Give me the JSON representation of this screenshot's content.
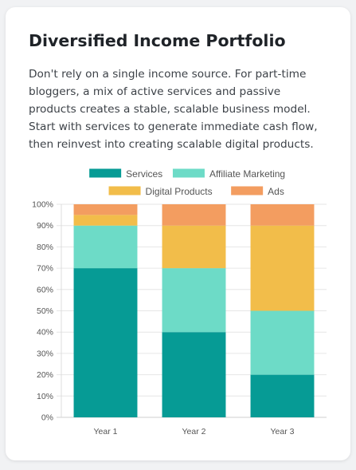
{
  "card": {
    "title": "Diversified Income Portfolio",
    "description": "Don't rely on a single income source. For part-time bloggers, a mix of active services and passive products creates a stable, scalable business model. Start with services to generate immediate cash flow, then reinvest into creating scalable digital products."
  },
  "chart_data": {
    "type": "bar",
    "stacked": true,
    "categories": [
      "Year 1",
      "Year 2",
      "Year 3"
    ],
    "series": [
      {
        "name": "Services",
        "color": "#069b95",
        "values": [
          70,
          40,
          20
        ]
      },
      {
        "name": "Affiliate Marketing",
        "color": "#6ddbc7",
        "values": [
          20,
          30,
          30
        ]
      },
      {
        "name": "Digital Products",
        "color": "#f2bd4a",
        "values": [
          5,
          20,
          40
        ]
      },
      {
        "name": "Ads",
        "color": "#f39d60",
        "values": [
          5,
          10,
          10
        ]
      }
    ],
    "ylim": [
      0,
      100
    ],
    "y_ticks": [
      "0%",
      "10%",
      "20%",
      "30%",
      "40%",
      "50%",
      "60%",
      "70%",
      "80%",
      "90%",
      "100%"
    ],
    "grid": true,
    "legend_position": "top",
    "title": "",
    "xlabel": "",
    "ylabel": ""
  }
}
